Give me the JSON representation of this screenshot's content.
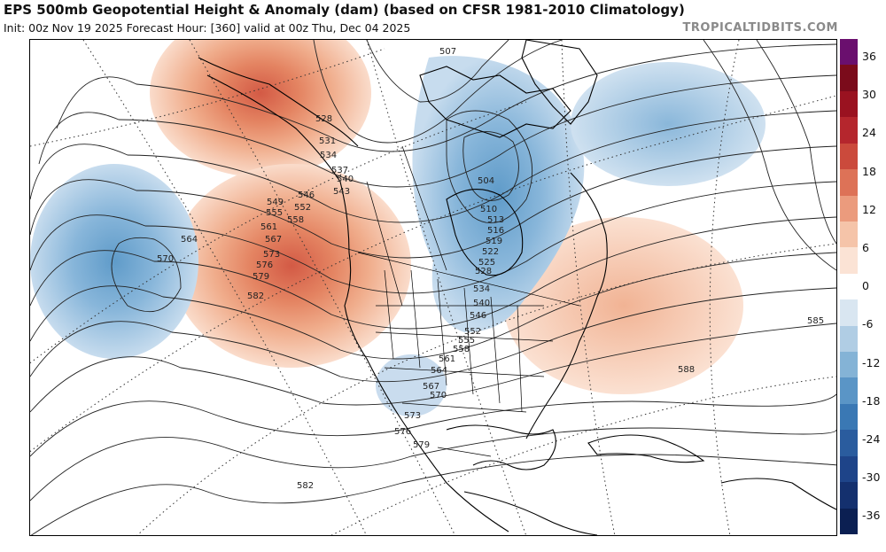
{
  "header": {
    "title": "EPS 500mb Geopotential Height & Anomaly (dam) (based on CFSR 1981-2010 Climatology)",
    "subtitle": "Init: 00z Nov 19 2025   Forecast Hour: [360]   valid at 00z Thu, Dec 04 2025",
    "brand": "TROPICALTIDBITS.COM"
  },
  "colorbar": {
    "labels": [
      "36",
      "30",
      "24",
      "18",
      "12",
      "6",
      "0",
      "-6",
      "-12",
      "-18",
      "-24",
      "-30",
      "-36"
    ],
    "colors": [
      "#6a0f6e",
      "#7b0b1b",
      "#9a1220",
      "#b5262d",
      "#cb4a3c",
      "#dd7257",
      "#eb9b7d",
      "#f5c4a9",
      "#fbe3d5",
      "#ffffff",
      "#d9e6f1",
      "#b0cde4",
      "#84b3d6",
      "#5a95c6",
      "#3a78b4",
      "#2a5c9e",
      "#1e4489",
      "#14306e",
      "#0b1f52"
    ]
  },
  "map": {
    "contour_labels": [
      {
        "text": "507"
      },
      {
        "text": "504"
      },
      {
        "text": "510"
      },
      {
        "text": "513"
      },
      {
        "text": "516"
      },
      {
        "text": "519"
      },
      {
        "text": "522"
      },
      {
        "text": "525"
      },
      {
        "text": "528"
      },
      {
        "text": "528"
      },
      {
        "text": "531"
      },
      {
        "text": "534"
      },
      {
        "text": "534"
      },
      {
        "text": "537"
      },
      {
        "text": "540"
      },
      {
        "text": "540"
      },
      {
        "text": "543"
      },
      {
        "text": "546"
      },
      {
        "text": "546"
      },
      {
        "text": "549"
      },
      {
        "text": "552"
      },
      {
        "text": "552"
      },
      {
        "text": "555"
      },
      {
        "text": "555"
      },
      {
        "text": "558"
      },
      {
        "text": "558"
      },
      {
        "text": "561"
      },
      {
        "text": "561"
      },
      {
        "text": "564"
      },
      {
        "text": "564"
      },
      {
        "text": "567"
      },
      {
        "text": "567"
      },
      {
        "text": "570"
      },
      {
        "text": "570"
      },
      {
        "text": "573"
      },
      {
        "text": "573"
      },
      {
        "text": "576"
      },
      {
        "text": "576"
      },
      {
        "text": "579"
      },
      {
        "text": "579"
      },
      {
        "text": "582"
      },
      {
        "text": "582"
      },
      {
        "text": "585"
      },
      {
        "text": "588"
      }
    ]
  }
}
